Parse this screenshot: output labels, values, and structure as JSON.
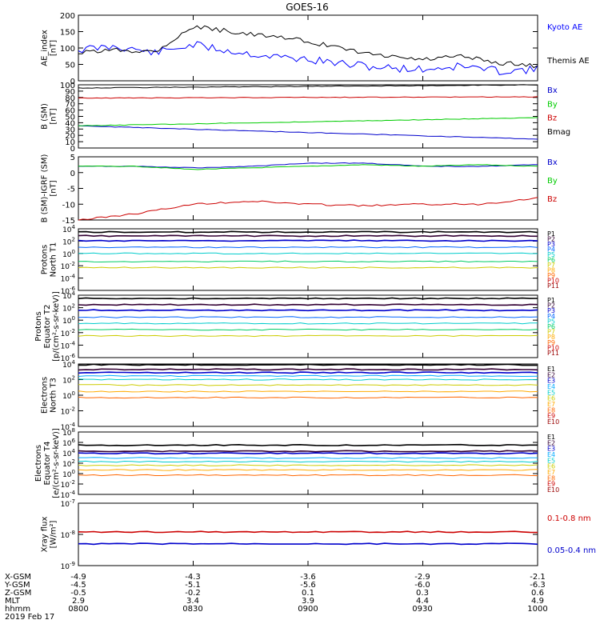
{
  "title": "GOES-16",
  "panels": [
    {
      "ylabel": [
        "AE_index",
        "[nT]"
      ],
      "yticks": [
        0,
        50,
        100,
        150,
        200
      ],
      "legend": [
        {
          "text": "Kyoto AE",
          "color": "#0000ff"
        },
        {
          "text": "Themis AE",
          "color": "#000000"
        }
      ]
    },
    {
      "ylabel": [
        "B (SM)",
        "[nT]"
      ],
      "yticks": [
        0,
        10,
        20,
        30,
        40,
        50,
        60,
        70,
        80,
        90,
        100
      ],
      "legend": [
        {
          "text": "Bx",
          "color": "#0000cc"
        },
        {
          "text": "By",
          "color": "#00cc00"
        },
        {
          "text": "Bz",
          "color": "#cc0000"
        },
        {
          "text": "Bmag",
          "color": "#000000"
        }
      ]
    },
    {
      "ylabel": [
        "B (SM)-IGRF (SM)",
        "[nT]"
      ],
      "yticks": [
        -15,
        -10,
        -5,
        0,
        5
      ],
      "legend": [
        {
          "text": "Bx",
          "color": "#0000cc"
        },
        {
          "text": "By",
          "color": "#00cc00"
        },
        {
          "text": "Bz",
          "color": "#cc0000"
        }
      ]
    },
    {
      "ylabel": [
        "Protons",
        "North T1"
      ],
      "yticks": [
        "10-6",
        "10-4",
        "10-2",
        "100",
        "102",
        "104"
      ],
      "legend": [
        {
          "text": "P1",
          "color": "#000000"
        },
        {
          "text": "P2",
          "color": "#330033"
        },
        {
          "text": "P3",
          "color": "#0000cc"
        },
        {
          "text": "P4",
          "color": "#0066ff"
        },
        {
          "text": "P5",
          "color": "#00cccc"
        },
        {
          "text": "P6",
          "color": "#00cc66"
        },
        {
          "text": "P7",
          "color": "#cccc00"
        },
        {
          "text": "P8",
          "color": "#ffaa00"
        },
        {
          "text": "P9",
          "color": "#ff6600"
        },
        {
          "text": "P10",
          "color": "#cc0000"
        },
        {
          "text": "P11",
          "color": "#990000"
        }
      ]
    },
    {
      "ylabel": [
        "Protons",
        "Equator T2",
        "[p/(cm²-s-sr-keV)]"
      ],
      "yticks": [
        "10-6",
        "10-4",
        "10-2",
        "100",
        "102",
        "104"
      ],
      "legend": [
        {
          "text": "P1",
          "color": "#000000"
        },
        {
          "text": "P2",
          "color": "#330033"
        },
        {
          "text": "P3",
          "color": "#0000cc"
        },
        {
          "text": "P4",
          "color": "#0066ff"
        },
        {
          "text": "P5",
          "color": "#00cccc"
        },
        {
          "text": "P6",
          "color": "#00cc66"
        },
        {
          "text": "P7",
          "color": "#cccc00"
        },
        {
          "text": "P8",
          "color": "#ffaa00"
        },
        {
          "text": "P9",
          "color": "#ff6600"
        },
        {
          "text": "P10",
          "color": "#cc0000"
        },
        {
          "text": "P11",
          "color": "#990000"
        }
      ]
    },
    {
      "ylabel": [
        "Electrons",
        "North T3"
      ],
      "yticks": [
        "10-4",
        "10-2",
        "100",
        "102",
        "104"
      ],
      "legend": [
        {
          "text": "E1",
          "color": "#000000"
        },
        {
          "text": "E2",
          "color": "#330033"
        },
        {
          "text": "E3",
          "color": "#0000cc"
        },
        {
          "text": "E4",
          "color": "#00aaff"
        },
        {
          "text": "E5",
          "color": "#00cccc"
        },
        {
          "text": "E6",
          "color": "#cccc00"
        },
        {
          "text": "E7",
          "color": "#ffaa00"
        },
        {
          "text": "E8",
          "color": "#ff6600"
        },
        {
          "text": "E9",
          "color": "#cc0000"
        },
        {
          "text": "E10",
          "color": "#990000"
        }
      ]
    },
    {
      "ylabel": [
        "Electrons",
        "Equator T4",
        "[e/(cm²-s-sr-keV)]"
      ],
      "yticks": [
        "10-4",
        "10-2",
        "100",
        "102",
        "104",
        "106",
        "108"
      ],
      "legend": [
        {
          "text": "E1",
          "color": "#000000"
        },
        {
          "text": "E2",
          "color": "#330033"
        },
        {
          "text": "E3",
          "color": "#0000cc"
        },
        {
          "text": "E4",
          "color": "#00aaff"
        },
        {
          "text": "E5",
          "color": "#00cccc"
        },
        {
          "text": "E6",
          "color": "#cccc00"
        },
        {
          "text": "E7",
          "color": "#ffaa00"
        },
        {
          "text": "E8",
          "color": "#ff6600"
        },
        {
          "text": "E9",
          "color": "#cc0000"
        },
        {
          "text": "E10",
          "color": "#990000"
        }
      ]
    },
    {
      "ylabel": [
        "Xray flux",
        "[W/m²]"
      ],
      "yticks": [
        "10-9",
        "10-8",
        "10-7"
      ],
      "legend": [
        {
          "text": "0.1-0.8 nm",
          "color": "#cc0000"
        },
        {
          "text": "0.05-0.4 nm",
          "color": "#0000cc"
        }
      ]
    }
  ],
  "footer": {
    "row_labels": [
      "X-GSM",
      "Y-GSM",
      "Z-GSM",
      "MLT",
      "hhmm",
      "2019 Feb 17"
    ],
    "columns": [
      {
        "X-GSM": "-4.9",
        "Y-GSM": "-4.5",
        "Z-GSM": "-0.5",
        "MLT": "2.9",
        "hhmm": "0800"
      },
      {
        "X-GSM": "-4.3",
        "Y-GSM": "-5.1",
        "Z-GSM": "-0.2",
        "MLT": "3.4",
        "hhmm": "0830"
      },
      {
        "X-GSM": "-3.6",
        "Y-GSM": "-5.6",
        "Z-GSM": "0.1",
        "MLT": "3.9",
        "hhmm": "0900"
      },
      {
        "X-GSM": "-2.9",
        "Y-GSM": "-6.0",
        "Z-GSM": "0.3",
        "MLT": "4.4",
        "hhmm": "0930"
      },
      {
        "X-GSM": "-2.1",
        "Y-GSM": "-6.3",
        "Z-GSM": "0.6",
        "MLT": "4.9",
        "hhmm": "1000"
      }
    ]
  },
  "chart_data": [
    {
      "type": "line",
      "title": "GOES-16",
      "ylabel": "AE_index [nT]",
      "ylim": [
        0,
        200
      ],
      "x": [
        "0800",
        "0810",
        "0820",
        "0830",
        "0840",
        "0850",
        "0900",
        "0910",
        "0920",
        "0930",
        "0940",
        "0950",
        "1000"
      ],
      "series": [
        {
          "name": "Kyoto AE",
          "values": [
            95,
            105,
            85,
            110,
            90,
            75,
            65,
            50,
            40,
            35,
            45,
            30,
            35
          ]
        },
        {
          "name": "Themis AE",
          "values": [
            85,
            95,
            90,
            165,
            150,
            135,
            120,
            95,
            75,
            65,
            75,
            55,
            45
          ]
        }
      ]
    },
    {
      "type": "line",
      "ylabel": "B (SM) [nT]",
      "ylim": [
        0,
        100
      ],
      "x": [
        "0800",
        "1000"
      ],
      "series": [
        {
          "name": "Bx",
          "values": [
            35,
            14
          ]
        },
        {
          "name": "By",
          "values": [
            35,
            48
          ]
        },
        {
          "name": "Bz",
          "values": [
            79,
            81
          ]
        },
        {
          "name": "Bmag",
          "values": [
            95,
            100
          ]
        }
      ]
    },
    {
      "type": "line",
      "ylabel": "B (SM)-IGRF (SM) [nT]",
      "ylim": [
        -15,
        5
      ],
      "x": [
        "0800",
        "0815",
        "0830",
        "0845",
        "0900",
        "0915",
        "0930",
        "0945",
        "1000"
      ],
      "series": [
        {
          "name": "Bx",
          "values": [
            2,
            2,
            1.5,
            2,
            3,
            3,
            2,
            2,
            2.5
          ]
        },
        {
          "name": "By",
          "values": [
            2,
            2,
            1,
            1.5,
            2,
            2.5,
            2,
            2.5,
            2
          ]
        },
        {
          "name": "Bz",
          "values": [
            -15,
            -13,
            -10,
            -9,
            -10,
            -10.5,
            -10,
            -10,
            -8
          ]
        }
      ]
    },
    {
      "type": "line",
      "ylabel": "Protons North T1",
      "y_scale": "log",
      "ylim": [
        "1e-6",
        "1e4"
      ],
      "series": [
        {
          "name": "P1",
          "values": [
            3000
          ]
        },
        {
          "name": "P2",
          "values": [
            700
          ]
        },
        {
          "name": "P3",
          "values": [
            120
          ]
        },
        {
          "name": "P4",
          "values": [
            10
          ]
        },
        {
          "name": "P5",
          "values": [
            1
          ]
        },
        {
          "name": "P6",
          "values": [
            0.05
          ]
        },
        {
          "name": "P7",
          "values": [
            0.005
          ]
        }
      ]
    },
    {
      "type": "line",
      "ylabel": "Protons Equator T2 [p/(cm²-s-sr-keV)]",
      "y_scale": "log",
      "ylim": [
        "1e-6",
        "1e4"
      ],
      "series": [
        {
          "name": "P1",
          "values": [
            3000
          ]
        },
        {
          "name": "P2",
          "values": [
            300
          ]
        },
        {
          "name": "P3",
          "values": [
            40
          ]
        },
        {
          "name": "P4",
          "values": [
            3
          ]
        },
        {
          "name": "P5",
          "values": [
            0.3
          ]
        },
        {
          "name": "P6",
          "values": [
            0.03
          ]
        },
        {
          "name": "P7",
          "values": [
            0.003
          ]
        }
      ]
    },
    {
      "type": "line",
      "ylabel": "Electrons North T3",
      "y_scale": "log",
      "ylim": [
        "1e-4",
        "1e4"
      ],
      "series": [
        {
          "name": "E1",
          "values": [
            8000
          ]
        },
        {
          "name": "E2",
          "values": [
            2000
          ]
        },
        {
          "name": "E3",
          "values": [
            800
          ]
        },
        {
          "name": "E4",
          "values": [
            300
          ]
        },
        {
          "name": "E5",
          "values": [
            100
          ]
        },
        {
          "name": "E6",
          "values": [
            20
          ]
        },
        {
          "name": "E7",
          "values": [
            3
          ]
        },
        {
          "name": "E8",
          "values": [
            0.5
          ]
        }
      ]
    },
    {
      "type": "line",
      "ylabel": "Electrons Equator T4 [e/(cm²-s-sr-keV)]",
      "y_scale": "log",
      "ylim": [
        "1e-4",
        "1e8"
      ],
      "series": [
        {
          "name": "E1",
          "values": [
            300000
          ]
        },
        {
          "name": "E2",
          "values": [
            20000
          ]
        },
        {
          "name": "E3",
          "values": [
            8000
          ]
        },
        {
          "name": "E4",
          "values": [
            1000
          ]
        },
        {
          "name": "E5",
          "values": [
            200
          ]
        },
        {
          "name": "E6",
          "values": [
            40
          ]
        },
        {
          "name": "E7",
          "values": [
            5
          ]
        },
        {
          "name": "E8",
          "values": [
            0.5
          ]
        }
      ]
    },
    {
      "type": "line",
      "ylabel": "Xray flux [W/m²]",
      "y_scale": "log",
      "ylim": [
        "1e-9",
        "1e-7"
      ],
      "series": [
        {
          "name": "0.1-0.8 nm",
          "values": [
            1.2e-08
          ]
        },
        {
          "name": "0.05-0.4 nm",
          "values": [
            5e-09
          ]
        }
      ]
    }
  ]
}
